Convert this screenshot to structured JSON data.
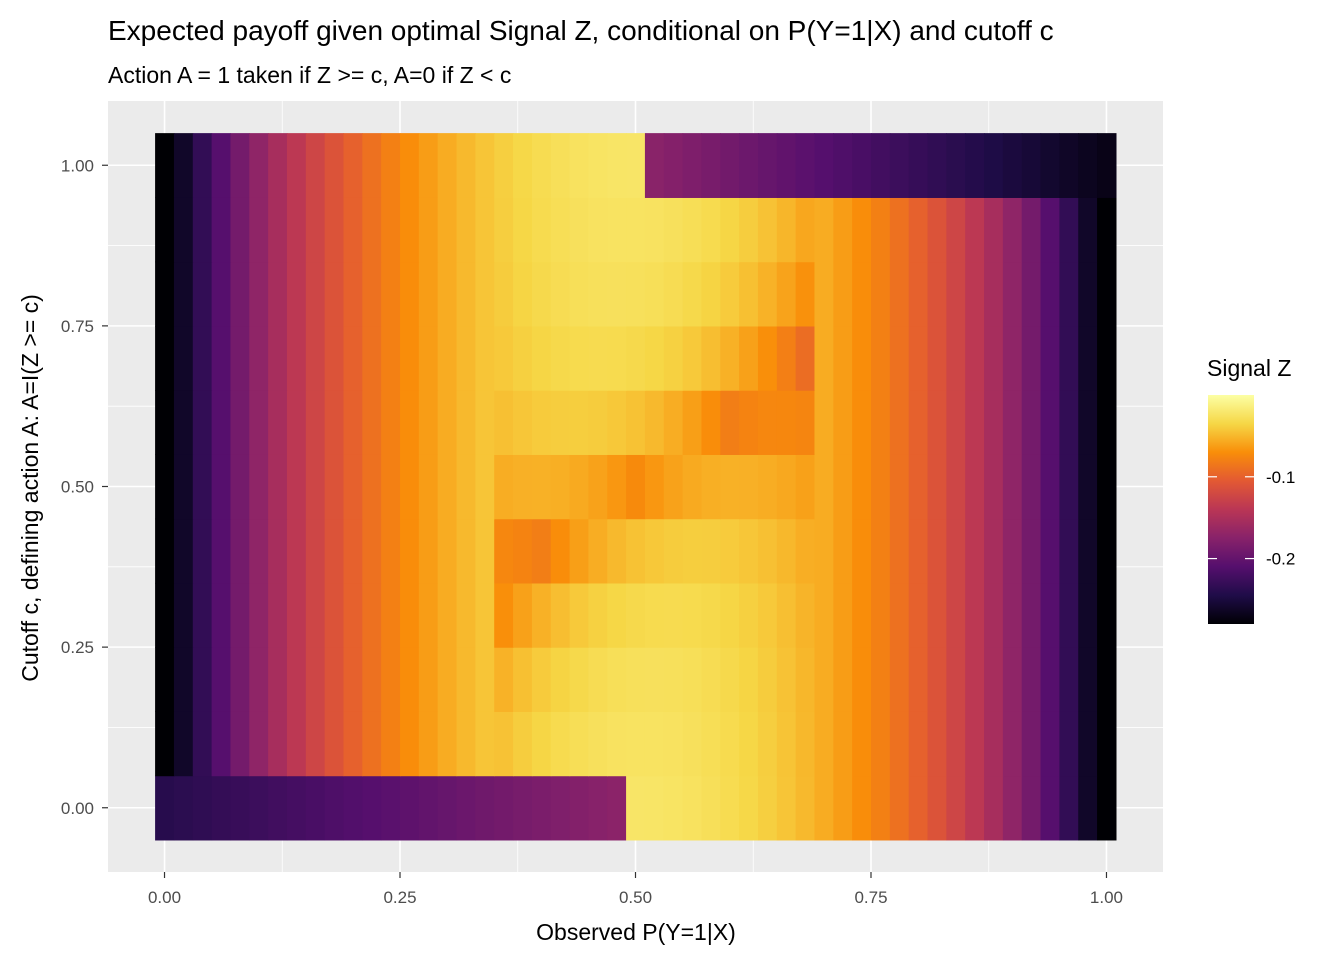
{
  "chart_data": {
    "type": "heatmap",
    "title": "Expected payoff given optimal Signal Z, conditional on P(Y=1|X) and cutoff c",
    "subtitle": "Action A = 1 taken if Z >= c, A=0 if Z < c",
    "xlabel": "Observed P(Y=1|X)",
    "ylabel": "Cutoff c, defining action A: A=I(Z >= c)",
    "x_ticks": [
      "0.00",
      "0.25",
      "0.50",
      "0.75",
      "1.00"
    ],
    "y_ticks": [
      "0.00",
      "0.25",
      "0.50",
      "0.75",
      "1.00"
    ],
    "xlim": [
      -0.06,
      1.06
    ],
    "ylim": [
      -0.1,
      1.1
    ],
    "x_values": [
      0,
      0.02,
      0.04,
      0.06,
      0.08,
      0.1,
      0.12,
      0.14,
      0.16,
      0.18,
      0.2,
      0.22,
      0.24,
      0.26,
      0.28,
      0.3,
      0.32,
      0.34,
      0.36,
      0.38,
      0.4,
      0.42,
      0.44,
      0.46,
      0.48,
      0.5,
      0.52,
      0.54,
      0.56,
      0.58,
      0.6,
      0.62,
      0.64,
      0.66,
      0.68,
      0.7,
      0.72,
      0.74,
      0.76,
      0.78,
      0.8,
      0.82,
      0.84,
      0.86,
      0.88,
      0.9,
      0.92,
      0.94,
      0.96,
      0.98,
      1.0
    ],
    "y_values": [
      0,
      0.1,
      0.2,
      0.3,
      0.4,
      0.5,
      0.6,
      0.7,
      0.8,
      0.9,
      1.0
    ],
    "fill_note": "Signal Z value per (x, y) tile",
    "z_range": [
      -0.28,
      0.0
    ],
    "legend": {
      "title": "Signal Z",
      "ticks": [
        {
          "label": "-0.1",
          "value": -0.1
        },
        {
          "label": "-0.2",
          "value": -0.2
        }
      ],
      "placement": "right",
      "colormap": [
        "#000004",
        "#1f0c48",
        "#550f6d",
        "#88226a",
        "#ba3655",
        "#e35933",
        "#f98e09",
        "#f6d746",
        "#fcffa4"
      ]
    },
    "colors": {
      "panel": "#ebebeb",
      "grid_major": "#ffffff"
    },
    "grid": true
  }
}
